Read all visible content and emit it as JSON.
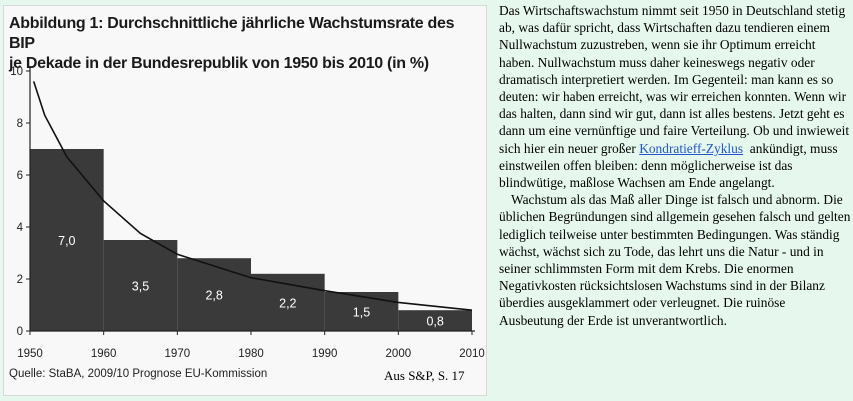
{
  "figure": {
    "title_line1": "Abbildung 1: Durchschnittliche jährliche Wachstumsrate des BIP",
    "title_line2": "je Dekade in der Bundesrepublik von 1950 bis 2010 (in %)",
    "source": "Quelle: StaBA, 2009/10 Prognose EU-Kommission",
    "credit": "Aus S&P, S. 17"
  },
  "chart_data": {
    "type": "bar",
    "title": "Abbildung 1: Durchschnittliche jährliche Wachstumsrate des BIP je Dekade in der Bundesrepublik von 1950 bis 2010 (in %)",
    "categories": [
      "1950–1960",
      "1960–1970",
      "1970–1980",
      "1980–1990",
      "1990–2000",
      "2000–2010"
    ],
    "values": [
      7.0,
      3.5,
      2.8,
      2.2,
      1.5,
      0.8
    ],
    "value_labels": [
      "7,0",
      "3,5",
      "2,8",
      "2,2",
      "1,5",
      "0,8"
    ],
    "x_ticks": [
      "1950",
      "1960",
      "1970",
      "1980",
      "1990",
      "2000",
      "2010"
    ],
    "y_ticks": [
      "0",
      "2",
      "4",
      "6",
      "8",
      "10"
    ],
    "xlim": [
      1950,
      2010
    ],
    "ylim": [
      0,
      10
    ],
    "bar_color": "#3a3a3a",
    "trend_curve": [
      [
        1950.5,
        9.6
      ],
      [
        1952,
        8.3
      ],
      [
        1955,
        6.7
      ],
      [
        1960,
        5.0
      ],
      [
        1965,
        3.75
      ],
      [
        1970,
        2.95
      ],
      [
        1980,
        2.05
      ],
      [
        1990,
        1.55
      ],
      [
        2000,
        1.1
      ],
      [
        2010,
        0.8
      ]
    ],
    "grid": false
  },
  "article": {
    "p1_before": "Das Wirtschaftswachstum nimmt seit 1950 in Deutschland stetig ab, was dafür spricht, dass Wirtschaften dazu tendieren einem Nullwachstum zuzustreben, wenn sie ihr Optimum erreicht haben. Nullwachstum muss daher keineswegs negativ oder dramatisch interpretiert werden. Im Gegenteil: man kann es so deuten: wir haben erreicht, was wir erreichen konnten. Wenn wir das halten, dann sind wir gut, dann ist alles bestens. Jetzt geht es dann um eine vernünftige und faire Verteilung. Ob und inwieweit sich hier ein neuer großer",
    "link": "Kondratieff-Zyklus",
    "p1_after": "ankündigt, muss einstweilen offen bleiben: denn möglicherweise ist das blindwütige, maßlose Wachsen am Ende angelangt.",
    "p2": "Wachstum als das Maß aller Dinge ist falsch und abnorm. Die üblichen Begründungen sind allgemein gesehen falsch und gelten lediglich teilweise unter bestimmten Bedingungen. Was ständig wächst, wächst sich zu Tode, das lehrt uns die Natur - und in seiner schlimmsten Form mit dem Krebs. Die enormen Negativkosten rücksichtslosen Wachstums sind in der Bilanz überdies ausgeklammert oder verleugnet. Die ruinöse Ausbeutung der Erde ist unverantwortlich."
  }
}
